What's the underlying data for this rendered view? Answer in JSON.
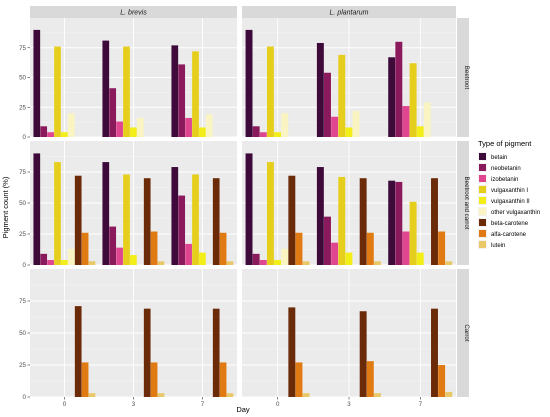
{
  "chart_data": {
    "type": "bar",
    "facet_columns": [
      "L. brevis",
      "L. plantarum"
    ],
    "facet_rows": [
      "Beetroot",
      "Beetroot and carrot",
      "Carrot"
    ],
    "categories": [
      "0",
      "3",
      "7"
    ],
    "xlabel": "Day",
    "ylabel": "Pigment count (%)",
    "ylim": [
      0,
      100
    ],
    "yticks": [
      0,
      25,
      50,
      75
    ],
    "legend_title": "Type of pigment",
    "legend_position": "right",
    "series": [
      {
        "name": "betain",
        "color": "#3d0a3a"
      },
      {
        "name": "neobetanin",
        "color": "#8b1a5c"
      },
      {
        "name": "izobetanin",
        "color": "#e0458f"
      },
      {
        "name": "vulgaxanthin I",
        "color": "#e6cf1c"
      },
      {
        "name": "vulgaxanthin II",
        "color": "#f3ee18"
      },
      {
        "name": "other vulgaxanthin",
        "color": "#f9f4c2"
      },
      {
        "name": "beta-carotene",
        "color": "#6b2a08"
      },
      {
        "name": "alfa-carotene",
        "color": "#e07a12"
      },
      {
        "name": "lutein",
        "color": "#e9c86a"
      }
    ],
    "panels": [
      {
        "row": "Beetroot",
        "col": "L. brevis",
        "values": [
          [
            90,
            9,
            4,
            76,
            4,
            20,
            0,
            0,
            0
          ],
          [
            81,
            41,
            13,
            76,
            8,
            16,
            0,
            0,
            0
          ],
          [
            77,
            61,
            16,
            72,
            8,
            19,
            0,
            0,
            0
          ]
        ]
      },
      {
        "row": "Beetroot",
        "col": "L. plantarum",
        "values": [
          [
            90,
            9,
            4,
            76,
            4,
            20,
            0,
            0,
            0
          ],
          [
            79,
            54,
            17,
            69,
            8,
            22,
            0,
            0,
            0
          ],
          [
            67,
            80,
            26,
            62,
            9,
            29,
            0,
            0,
            0
          ]
        ]
      },
      {
        "row": "Beetroot and carrot",
        "col": "L. brevis",
        "values": [
          [
            90,
            9,
            4,
            83,
            4,
            13,
            72,
            26,
            3
          ],
          [
            83,
            31,
            14,
            73,
            8,
            0,
            70,
            27,
            3
          ],
          [
            79,
            56,
            17,
            73,
            10,
            0,
            70,
            26,
            3
          ]
        ]
      },
      {
        "row": "Beetroot and carrot",
        "col": "L. plantarum",
        "values": [
          [
            90,
            9,
            4,
            83,
            4,
            13,
            72,
            26,
            3
          ],
          [
            79,
            39,
            18,
            71,
            10,
            0,
            70,
            26,
            3
          ],
          [
            68,
            67,
            27,
            51,
            10,
            0,
            70,
            27,
            3
          ]
        ]
      },
      {
        "row": "Carrot",
        "col": "L. brevis",
        "values": [
          [
            0,
            0,
            0,
            0,
            0,
            0,
            71,
            27,
            3
          ],
          [
            0,
            0,
            0,
            0,
            0,
            0,
            69,
            27,
            3
          ],
          [
            0,
            0,
            0,
            0,
            0,
            0,
            69,
            27,
            3
          ]
        ]
      },
      {
        "row": "Carrot",
        "col": "L. plantarum",
        "values": [
          [
            0,
            0,
            0,
            0,
            0,
            0,
            70,
            27,
            3
          ],
          [
            0,
            0,
            0,
            0,
            0,
            0,
            67,
            28,
            3
          ],
          [
            0,
            0,
            0,
            0,
            0,
            0,
            69,
            25,
            4
          ]
        ]
      }
    ]
  }
}
